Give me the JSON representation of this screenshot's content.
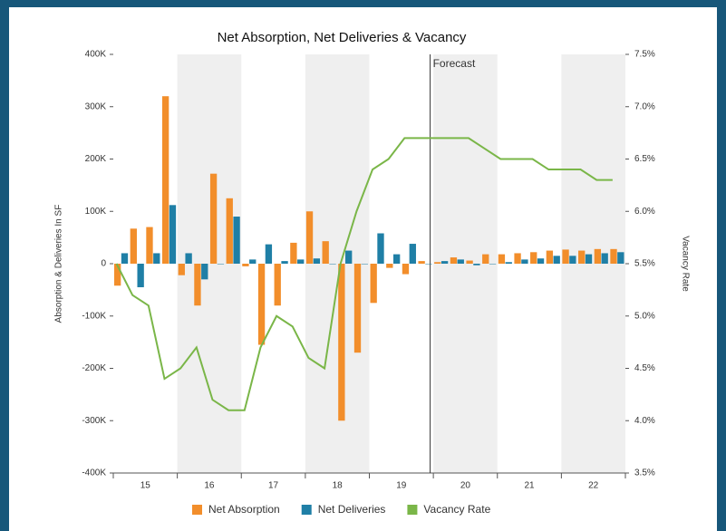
{
  "chart_data": {
    "type": "bar_line",
    "title": "Net Absorption, Net Deliveries & Vacancy",
    "y_label": "Absorption & Deliveries In SF",
    "y2_label": "Vacancy Rate",
    "forecast_label": "Forecast",
    "categories": [
      null,
      "15",
      null,
      null,
      null,
      "16",
      null,
      null,
      null,
      "17",
      null,
      null,
      null,
      "18",
      null,
      null,
      null,
      "19",
      null,
      null,
      null,
      "20",
      null,
      null,
      null,
      "21",
      null,
      null,
      null,
      "22",
      null,
      null
    ],
    "series": [
      {
        "name": "Net Absorption",
        "color": "#f28e2b",
        "kind": "bar",
        "values": [
          -42000,
          67000,
          70000,
          320000,
          -22000,
          -80000,
          172000,
          125000,
          -5000,
          -155000,
          -80000,
          40000,
          100000,
          43000,
          -300000,
          -170000,
          -75000,
          -8000,
          -20000,
          5000,
          3000,
          12000,
          6000,
          18000,
          18000,
          20000,
          22000,
          25000,
          27000,
          25000,
          28000,
          28000
        ]
      },
      {
        "name": "Net Deliveries",
        "color": "#1f7fa6",
        "kind": "bar",
        "values": [
          20000,
          -45000,
          20000,
          112000,
          20000,
          -30000,
          0,
          90000,
          8000,
          37000,
          5000,
          8000,
          10000,
          0,
          25000,
          0,
          58000,
          18000,
          38000,
          0,
          5000,
          8000,
          -3000,
          0,
          3000,
          8000,
          10000,
          15000,
          15000,
          18000,
          20000,
          22000
        ]
      },
      {
        "name": "Vacancy Rate",
        "color": "#7ab648",
        "kind": "line",
        "axis": "y2",
        "values": [
          5.5,
          5.2,
          5.1,
          4.4,
          4.5,
          4.7,
          4.2,
          4.1,
          4.1,
          4.7,
          5.0,
          4.9,
          4.6,
          4.5,
          5.5,
          6.0,
          6.4,
          6.5,
          6.7,
          6.7,
          6.7,
          6.7,
          6.7,
          6.6,
          6.5,
          6.5,
          6.5,
          6.4,
          6.4,
          6.4,
          6.3,
          6.3
        ]
      }
    ],
    "ylim": [
      -400000,
      400000
    ],
    "yticks": [
      {
        "value": -400000,
        "label": "-400K"
      },
      {
        "value": -300000,
        "label": "-300K"
      },
      {
        "value": -200000,
        "label": "-200K"
      },
      {
        "value": -100000,
        "label": "-100K"
      },
      0,
      {
        "value": 100000,
        "label": "100K"
      },
      {
        "value": 200000,
        "label": "200K"
      },
      {
        "value": 300000,
        "label": "300K"
      },
      {
        "value": 400000,
        "label": "400K"
      }
    ],
    "y2lim": [
      3.5,
      7.5
    ],
    "y2ticks": [
      {
        "value": 3.5,
        "label": "3.5%"
      },
      {
        "value": 4.0,
        "label": "4.0%"
      },
      {
        "value": 4.5,
        "label": "4.5%"
      },
      {
        "value": 5.0,
        "label": "5.0%"
      },
      {
        "value": 5.5,
        "label": "5.5%"
      },
      {
        "value": 6.0,
        "label": "6.0%"
      },
      {
        "value": 6.5,
        "label": "6.5%"
      },
      {
        "value": 7.0,
        "label": "7.0%"
      },
      {
        "value": 7.5,
        "label": "7.5%"
      }
    ]
  }
}
